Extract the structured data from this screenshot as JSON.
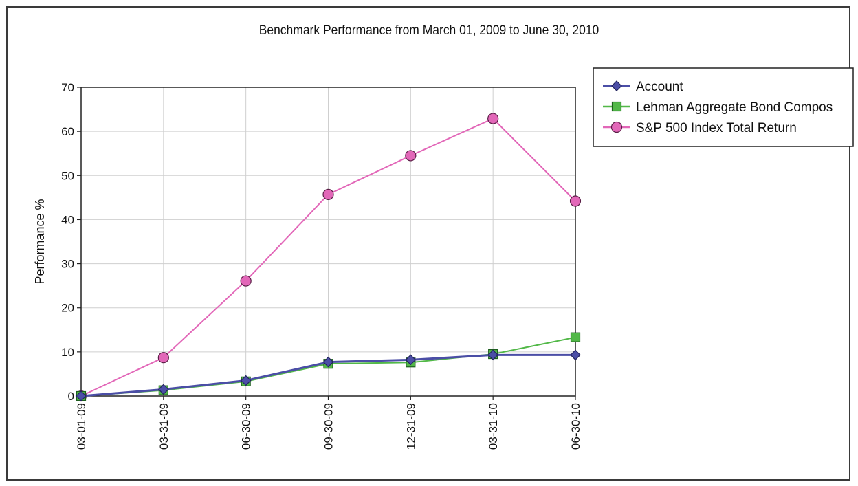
{
  "chart_data": {
    "type": "line",
    "title": "Benchmark Performance from March 01, 2009 to June 30, 2010",
    "ylabel": "Performance %",
    "xlabel": "",
    "categories": [
      "03-01-09",
      "03-31-09",
      "06-30-09",
      "09-30-09",
      "12-31-09",
      "03-31-10",
      "06-30-10"
    ],
    "ylim": [
      0,
      70
    ],
    "yticks": [
      0,
      10,
      20,
      30,
      40,
      50,
      60,
      70
    ],
    "grid": true,
    "legend_position": "top-right",
    "series": [
      {
        "name": "Account",
        "values": [
          0,
          1.5,
          3.5,
          7.7,
          8.2,
          9.3,
          9.3
        ],
        "color": "#4b4ea6",
        "marker": "diamond"
      },
      {
        "name": "Lehman Aggregate Bond Compos",
        "values": [
          0,
          1.3,
          3.3,
          7.3,
          7.6,
          9.5,
          13.3
        ],
        "color": "#52b848",
        "marker": "square"
      },
      {
        "name": "S&P 500 Index Total Return",
        "values": [
          0,
          8.7,
          26.1,
          45.7,
          54.5,
          62.9,
          44.2
        ],
        "color": "#e267b8",
        "marker": "circle"
      }
    ]
  }
}
